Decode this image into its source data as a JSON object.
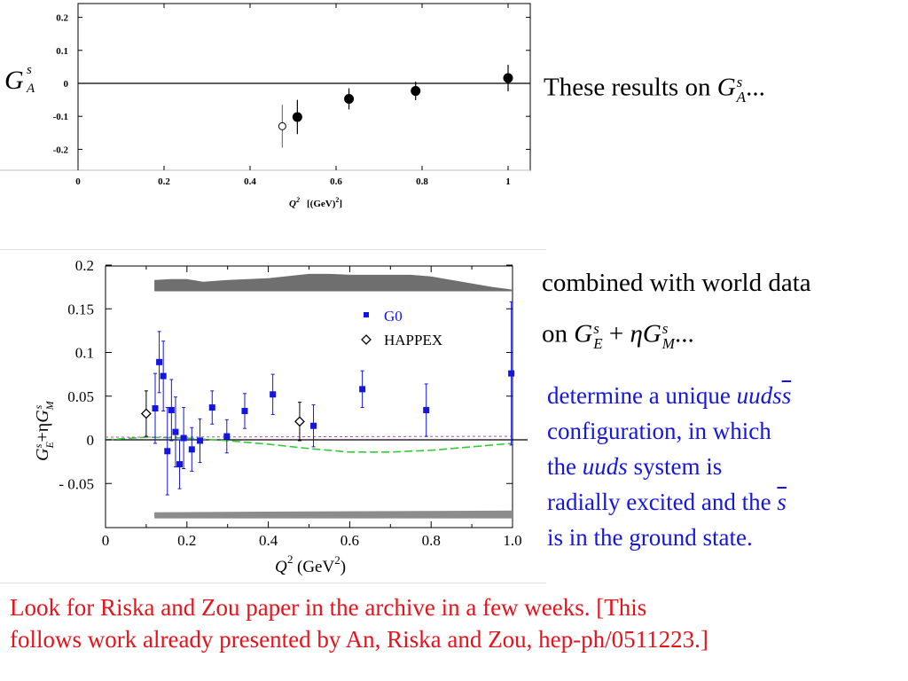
{
  "chart_data": [
    {
      "type": "scatter",
      "title": "",
      "ylabel_symbol": "G",
      "ylabel_sup": "s",
      "ylabel_sub": "A",
      "xlabel_main": "Q",
      "xlabel_sup": "2",
      "xlabel_unit": "[(GeV)",
      "xlabel_unit_sup": "2",
      "xlabel_close": "]",
      "xlim": [
        0,
        1.05
      ],
      "ylim": [
        -0.25,
        0.2
      ],
      "xticks": [
        0,
        0.2,
        0.4,
        0.6,
        0.8,
        1
      ],
      "xtick_labels": [
        "0",
        "0.2",
        "0.4",
        "0.6",
        "0.8",
        "1"
      ],
      "yticks": [
        0.2,
        0.1,
        0,
        -0.1,
        -0.2
      ],
      "ytick_labels": [
        "0.2",
        "0.1",
        "0",
        "-0.1",
        "-0.2"
      ],
      "series": [
        {
          "marker": "filled-circle",
          "x": [
            0.51,
            0.63,
            0.785,
            1.0
          ],
          "y": [
            -0.102,
            -0.047,
            -0.023,
            0.016
          ],
          "err": [
            0.052,
            0.032,
            0.028,
            0.04
          ]
        },
        {
          "marker": "open-circle",
          "x": [
            0.475
          ],
          "y": [
            -0.13
          ],
          "err": [
            0.065
          ]
        }
      ]
    },
    {
      "type": "scatter",
      "title": "",
      "ylabel": "G_E^s+ηG_M^s",
      "xlabel_main": "Q",
      "xlabel_sup": "2",
      "xlabel_unit": "(GeV",
      "xlabel_unit_sup": "2",
      "xlabel_close": ")",
      "xlim": [
        0,
        1.0
      ],
      "ylim": [
        -0.1,
        0.2
      ],
      "xticks": [
        0,
        0.2,
        0.4,
        0.6,
        0.8,
        1.0
      ],
      "xtick_labels": [
        "0",
        "0.2",
        "0.4",
        "0.6",
        "0.8",
        "1.0"
      ],
      "yticks": [
        0.2,
        0.15,
        0.1,
        0.05,
        0,
        -0.05
      ],
      "ytick_labels": [
        "0.2",
        "0.15",
        "0.1",
        "0.05",
        "0",
        "- 0.05"
      ],
      "legend_position": "top-right",
      "series": [
        {
          "name": "G0",
          "marker": "filled-square",
          "color": "#1515e0",
          "x": [
            0.122,
            0.132,
            0.142,
            0.152,
            0.162,
            0.172,
            0.182,
            0.192,
            0.212,
            0.232,
            0.262,
            0.298,
            0.342,
            0.411,
            0.511,
            0.631,
            0.788,
            0.997
          ],
          "y": [
            0.036,
            0.089,
            0.073,
            -0.013,
            0.034,
            0.009,
            -0.028,
            0.002,
            -0.011,
            -0.001,
            0.037,
            0.004,
            0.033,
            0.052,
            0.016,
            0.058,
            0.034,
            0.076
          ],
          "err": [
            0.04,
            0.035,
            0.04,
            0.05,
            0.035,
            0.04,
            0.028,
            0.035,
            0.025,
            0.025,
            0.019,
            0.019,
            0.02,
            0.023,
            0.024,
            0.021,
            0.03,
            0.082
          ]
        },
        {
          "name": "HAPPEX",
          "marker": "open-diamond",
          "color": "#000000",
          "x": [
            0.1,
            0.477
          ],
          "y": [
            0.03,
            0.021
          ],
          "err": [
            0.026,
            0.022
          ]
        }
      ],
      "band_top": {
        "x": [
          0.12,
          0.16,
          0.2,
          0.24,
          0.3,
          0.35,
          0.4,
          0.5,
          0.55,
          0.6,
          0.75,
          0.8,
          0.95,
          1.0
        ],
        "y": [
          0.183,
          0.184,
          0.184,
          0.181,
          0.183,
          0.184,
          0.185,
          0.19,
          0.19,
          0.189,
          0.189,
          0.187,
          0.175,
          0.172
        ]
      },
      "band_top_base": 0.17,
      "band_bottom": {
        "x": [
          0.12,
          0.5,
          1.0
        ],
        "y_top": [
          -0.083,
          -0.082,
          -0.081
        ],
        "y_bottom": [
          -0.09,
          -0.09,
          -0.09
        ]
      },
      "theory_green": {
        "x": [
          0,
          0.1,
          0.2,
          0.3,
          0.4,
          0.5,
          0.6,
          0.7,
          0.8,
          0.9,
          1.0
        ],
        "y": [
          0,
          0.003,
          0.002,
          -0.001,
          -0.005,
          -0.01,
          -0.014,
          -0.014,
          -0.012,
          -0.008,
          -0.004
        ]
      },
      "theory_magenta": {
        "x": [
          0,
          1.0
        ],
        "y": [
          0.003,
          0.004
        ]
      },
      "colors": {
        "band": "#6f6f6f",
        "green": "#33cc33",
        "magenta": "#dd33dd"
      }
    }
  ],
  "text": {
    "line1_pre": "These results on ",
    "line1_sym": "G",
    "line1_sup": "s",
    "line1_sub": "A",
    "line1_post": "...",
    "line2": "combined with world data",
    "line3_pre": "on ",
    "line3_g1": "G",
    "line3_g1_sup": "s",
    "line3_g1_sub": "E",
    "line3_plus": " + ",
    "line3_eta": "η",
    "line3_g2": "G",
    "line3_g2_sup": "s",
    "line3_g2_sub": "M",
    "line3_post": "...",
    "blue1_pre": "determine a unique ",
    "blue1_it": "uuds",
    "blue1_sbar": "s",
    "blue2": "configuration, in which",
    "blue3_pre": "the ",
    "blue3_it": "uuds",
    "blue3_post": " system is",
    "blue4_pre": "radially excited and the ",
    "blue4_sbar": "s",
    "blue5": "is in the ground state.",
    "red1": "Look for Riska and Zou paper in the archive in a few weeks. [This",
    "red2": "follows work already presented by An, Riska and Zou, hep-ph/0511223.]"
  },
  "colors": {
    "blue_text": "#1515e0",
    "red_text": "#e8121a"
  }
}
